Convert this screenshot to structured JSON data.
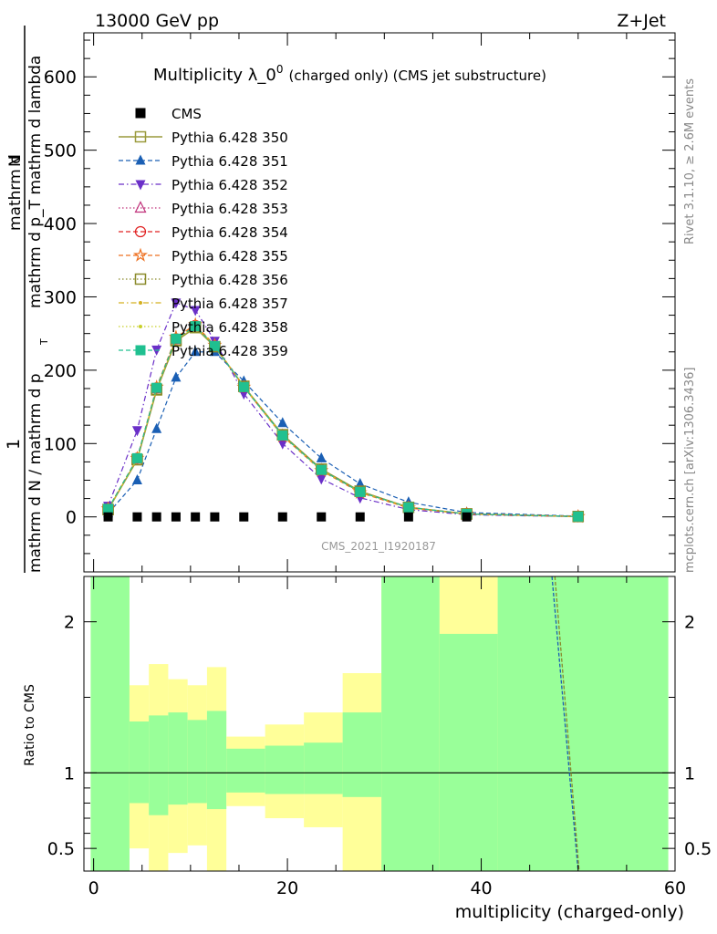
{
  "header": {
    "left": "13000 GeV pp",
    "right": "Z+Jet"
  },
  "title": {
    "main": "Multiplicity λ_0",
    "sup": "0",
    "sub": "(charged only) (CMS jet substructure)"
  },
  "ylabel_main": "1 / mathrm d N / mathrm d p_T mathrm d^2N / mathrm d p_T mathrm d lambda",
  "ylabel_main_parts": {
    "numerator": "mathrm d",
    "numerator_N": "N",
    "sub_line": "mathrm d p_T mathrm d lambda",
    "one": "1",
    "denominator": "mathrm d N / mathrm d p",
    "T": "T"
  },
  "ylabel_ratio": "Ratio to CMS",
  "xlabel": "multiplicity (charged-only)",
  "side_labels": {
    "rivet": "Rivet 3.1.10, ≥ 2.6M events",
    "mcplots": "mcplots.cern.ch [arXiv:1306.3436]"
  },
  "watermark": "CMS_2021_I1920187",
  "colors": {
    "band_inner": "#99ff99",
    "band_outer": "#ffff99"
  },
  "chart_data": [
    {
      "type": "line",
      "panel": "main",
      "xlim": [
        -1,
        60
      ],
      "ylim": [
        -75,
        660
      ],
      "x_ticks": [
        0,
        20,
        40,
        60
      ],
      "y_ticks": [
        0,
        100,
        200,
        300,
        400,
        500,
        600
      ],
      "legend_position": "top-left",
      "x": [
        1.5,
        4.5,
        6.5,
        8.5,
        10.5,
        12.5,
        15.5,
        19.5,
        23.5,
        27.5,
        32.5,
        38.5,
        50.0
      ],
      "series": [
        {
          "name": "CMS",
          "color": "#000000",
          "marker": "square-filled",
          "line": "none",
          "values": [
            0,
            0,
            0,
            0,
            0,
            0,
            0,
            0,
            0,
            0,
            0,
            0,
            null
          ]
        },
        {
          "name": "Pythia 6.428 350",
          "color": "#9a9a3c",
          "marker": "square-open",
          "line": "solid",
          "values": [
            10,
            78,
            173,
            240,
            258,
            232,
            178,
            112,
            65,
            35,
            13,
            4,
            0.5
          ]
        },
        {
          "name": "Pythia 6.428 351",
          "color": "#1a5fb4",
          "marker": "triangle-up",
          "line": "dashed",
          "values": [
            5,
            50,
            120,
            190,
            225,
            225,
            185,
            128,
            80,
            45,
            20,
            6,
            1
          ]
        },
        {
          "name": "Pythia 6.428 352",
          "color": "#6a2fc8",
          "marker": "triangle-down",
          "line": "dashdot",
          "values": [
            15,
            118,
            228,
            292,
            282,
            240,
            168,
            100,
            52,
            26,
            10,
            3,
            0.3
          ]
        },
        {
          "name": "Pythia 6.428 353",
          "color": "#c0307a",
          "marker": "triangle-open",
          "line": "dotted",
          "values": [
            11,
            79,
            175,
            242,
            260,
            233,
            177,
            111,
            64,
            34,
            13,
            4,
            0.5
          ]
        },
        {
          "name": "Pythia 6.428 354",
          "color": "#e02020",
          "marker": "circle-open",
          "line": "dashed",
          "values": [
            11,
            80,
            176,
            243,
            261,
            233,
            177,
            111,
            64,
            34,
            13,
            4,
            0.5
          ]
        },
        {
          "name": "Pythia 6.428 355",
          "color": "#ee7020",
          "marker": "star-open",
          "line": "dashed",
          "values": [
            11,
            80,
            177,
            245,
            262,
            234,
            177,
            110,
            63,
            33,
            12,
            4,
            0.5
          ]
        },
        {
          "name": "Pythia 6.428 356",
          "color": "#8a8a2a",
          "marker": "square-open",
          "line": "dotted",
          "values": [
            10,
            78,
            174,
            241,
            259,
            232,
            178,
            112,
            65,
            35,
            13,
            4,
            0.5
          ]
        },
        {
          "name": "Pythia 6.428 357",
          "color": "#d4b020",
          "marker": "dot",
          "line": "dashdot",
          "values": [
            10,
            79,
            175,
            242,
            260,
            233,
            178,
            111,
            64,
            34,
            13,
            4,
            0.5
          ]
        },
        {
          "name": "Pythia 6.428 358",
          "color": "#c8d028",
          "marker": "dot",
          "line": "dotted",
          "values": [
            10,
            79,
            175,
            242,
            259,
            233,
            178,
            111,
            64,
            34,
            13,
            4,
            0.5
          ]
        },
        {
          "name": "Pythia 6.428 359",
          "color": "#20c090",
          "marker": "square-filled",
          "line": "dashed",
          "values": [
            11,
            80,
            176,
            243,
            260,
            233,
            177,
            111,
            64,
            34,
            13,
            4,
            0.5
          ]
        }
      ]
    },
    {
      "type": "area",
      "panel": "ratio",
      "ylabel": "Ratio to CMS",
      "xlim": [
        -1,
        60
      ],
      "ylim": [
        0.35,
        2.3
      ],
      "x_ticks": [
        0,
        20,
        40,
        60
      ],
      "y_ticks": [
        0.5,
        1,
        2
      ],
      "reference_line": 1,
      "bins": [
        {
          "x0": -0.3,
          "x1": 3.7,
          "inner_lo": 0.35,
          "inner_hi": 2.3,
          "outer_lo": 0.35,
          "outer_hi": 2.3
        },
        {
          "x0": 3.7,
          "x1": 5.7,
          "inner_lo": 0.8,
          "inner_hi": 1.34,
          "outer_lo": 0.5,
          "outer_hi": 1.58
        },
        {
          "x0": 5.7,
          "x1": 7.7,
          "inner_lo": 0.72,
          "inner_hi": 1.38,
          "outer_lo": 0.35,
          "outer_hi": 1.72
        },
        {
          "x0": 7.7,
          "x1": 9.7,
          "inner_lo": 0.79,
          "inner_hi": 1.4,
          "outer_lo": 0.47,
          "outer_hi": 1.62
        },
        {
          "x0": 9.7,
          "x1": 11.7,
          "inner_lo": 0.8,
          "inner_hi": 1.35,
          "outer_lo": 0.52,
          "outer_hi": 1.58
        },
        {
          "x0": 11.7,
          "x1": 13.7,
          "inner_lo": 0.76,
          "inner_hi": 1.41,
          "outer_lo": 0.35,
          "outer_hi": 1.7
        },
        {
          "x0": 13.7,
          "x1": 17.7,
          "inner_lo": 0.87,
          "inner_hi": 1.16,
          "outer_lo": 0.78,
          "outer_hi": 1.24
        },
        {
          "x0": 17.7,
          "x1": 21.7,
          "inner_lo": 0.86,
          "inner_hi": 1.18,
          "outer_lo": 0.7,
          "outer_hi": 1.32
        },
        {
          "x0": 21.7,
          "x1": 25.7,
          "inner_lo": 0.86,
          "inner_hi": 1.2,
          "outer_lo": 0.64,
          "outer_hi": 1.4
        },
        {
          "x0": 25.7,
          "x1": 29.7,
          "inner_lo": 0.84,
          "inner_hi": 1.4,
          "outer_lo": 0.35,
          "outer_hi": 1.66
        },
        {
          "x0": 29.7,
          "x1": 35.7,
          "inner_lo": 0.35,
          "inner_hi": 2.3,
          "outer_lo": 0.35,
          "outer_hi": 2.3
        },
        {
          "x0": 35.7,
          "x1": 41.7,
          "inner_lo": 0.35,
          "inner_hi": 1.92,
          "outer_lo": 0.35,
          "outer_hi": 2.3
        },
        {
          "x0": 41.7,
          "x1": 59.3,
          "inner_lo": 0.35,
          "inner_hi": 2.3,
          "outer_lo": 0.35,
          "outer_hi": 2.3
        }
      ],
      "mc_lines": [
        {
          "color": "#1a5fb4",
          "x": [
            47.3,
            50.0
          ],
          "y": [
            2.3,
            0.35
          ]
        },
        {
          "color": "#8a8a2a",
          "x": [
            47.6,
            50.1
          ],
          "y": [
            2.3,
            0.35
          ]
        }
      ]
    }
  ]
}
